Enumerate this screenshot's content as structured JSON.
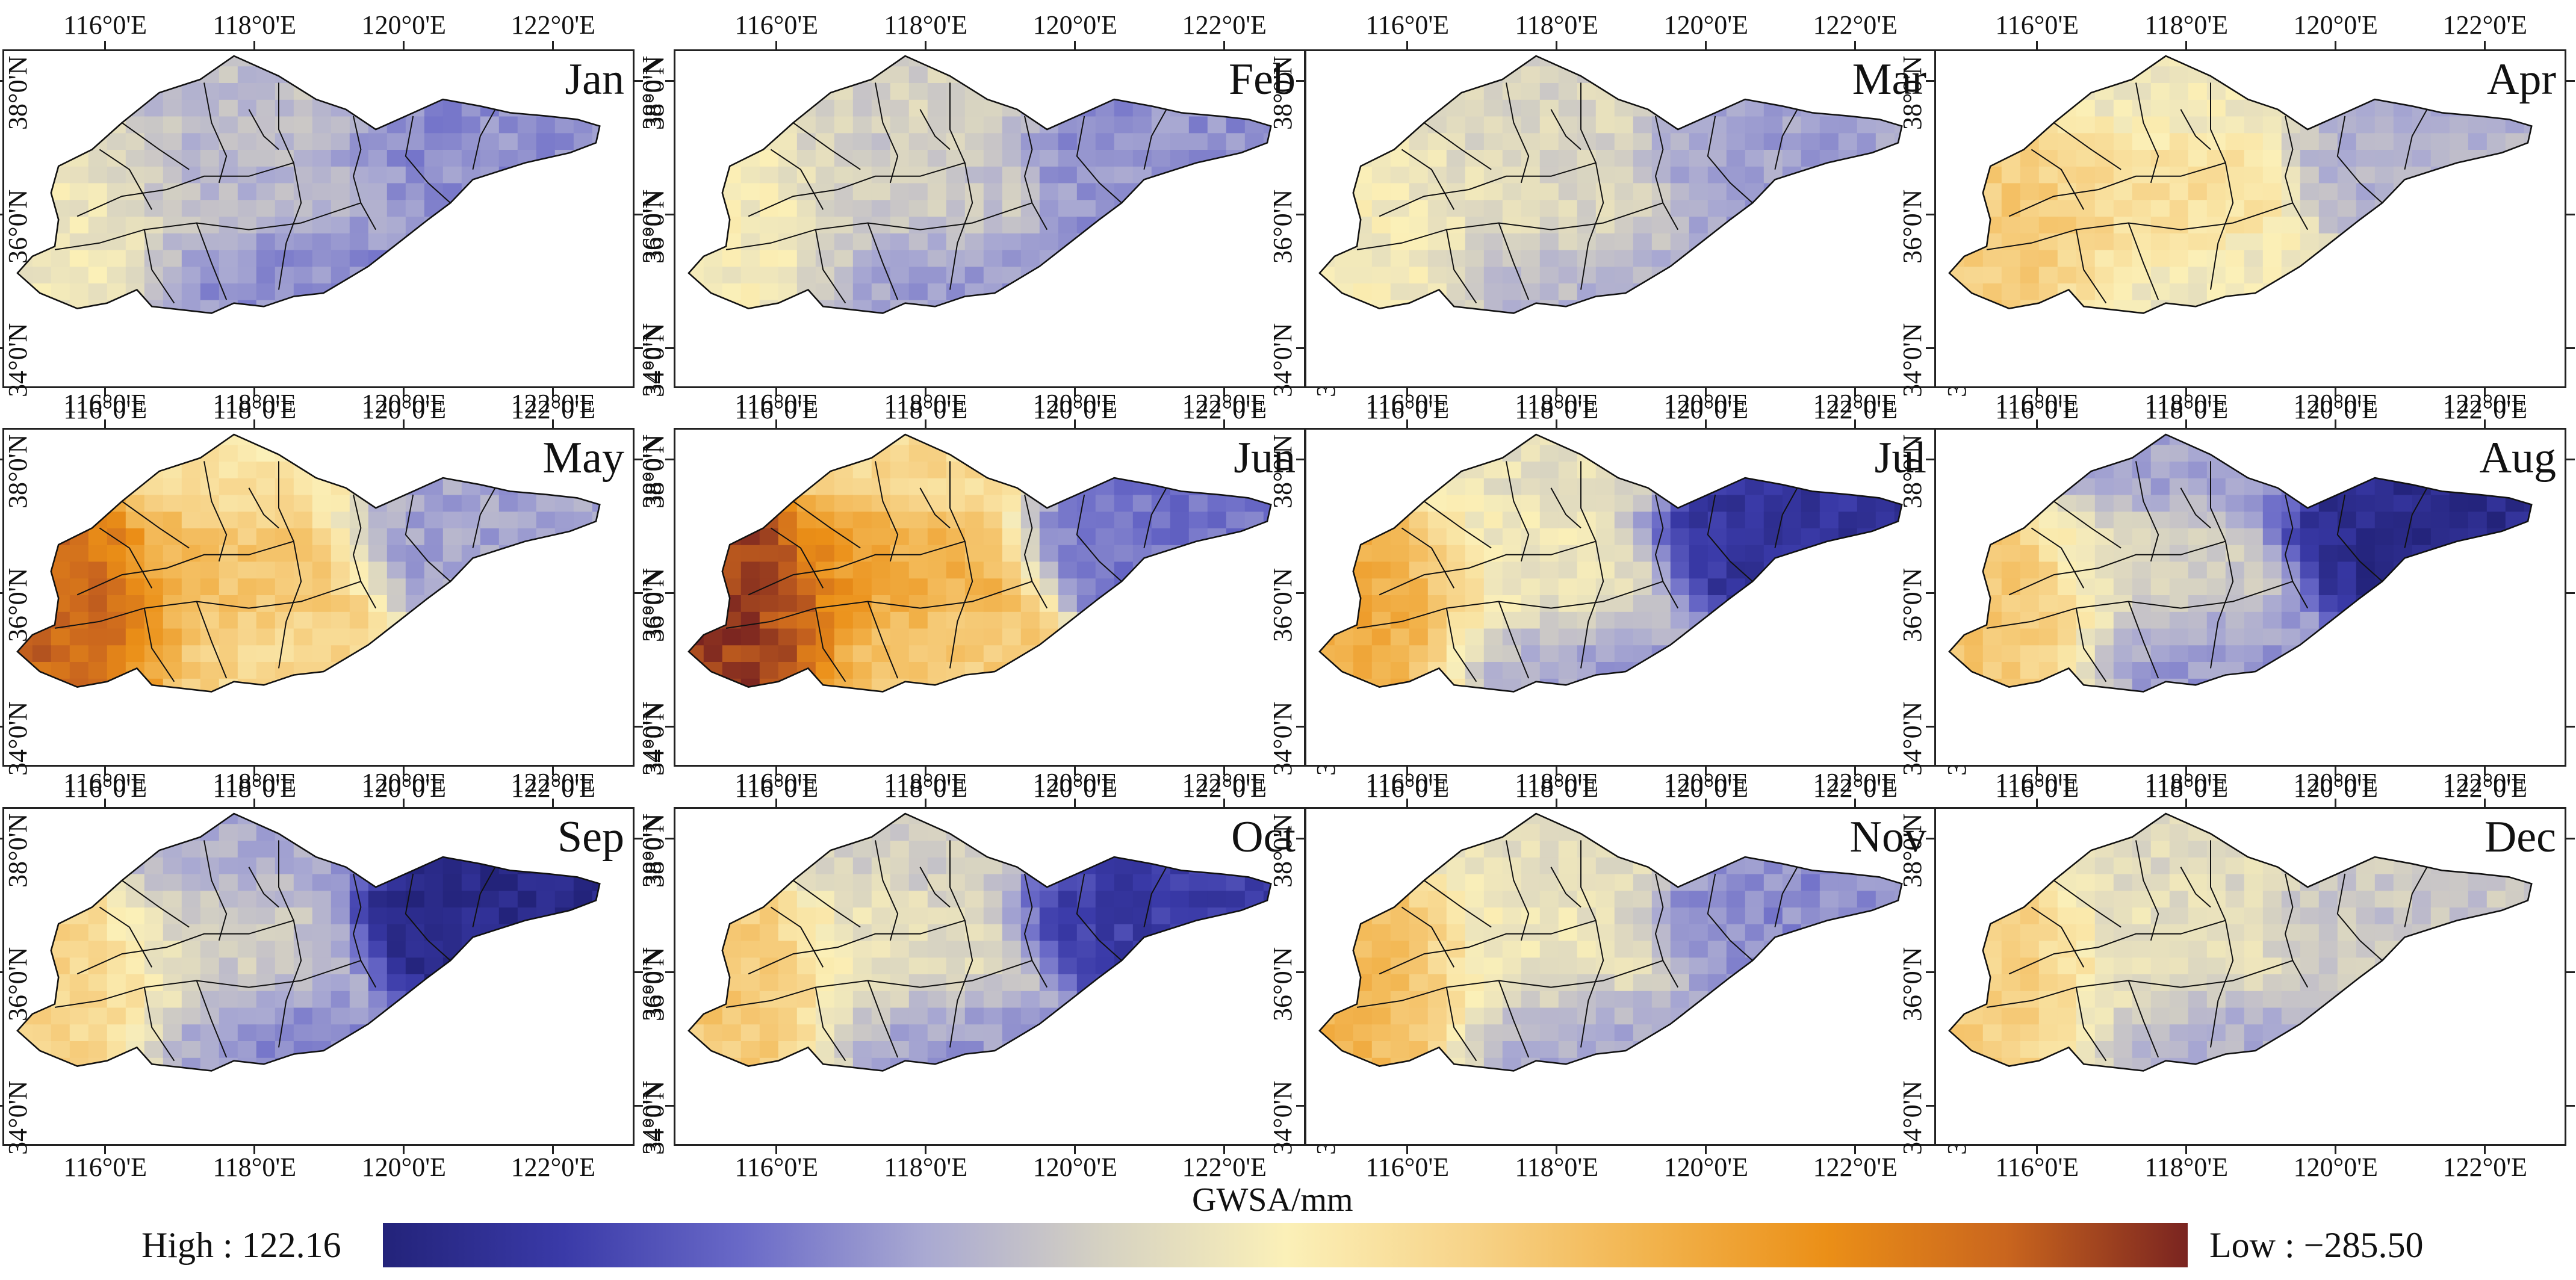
{
  "figure": {
    "variable_label": "GWSA/mm",
    "months": [
      "Jan",
      "Feb",
      "Mar",
      "Apr",
      "May",
      "Jun",
      "Jul",
      "Aug",
      "Sep",
      "Oct",
      "Nov",
      "Dec"
    ],
    "longitude_ticks": [
      "116°0'E",
      "118°0'E",
      "120°0'E",
      "122°0'E"
    ],
    "latitude_ticks": [
      "38°0'N",
      "36°0'N",
      "34°0'N"
    ]
  },
  "legend": {
    "high_label": "High : 122.16",
    "low_label": "Low : −285.50",
    "colors": [
      "#23237a",
      "#3a3aa8",
      "#6a6ac8",
      "#a9a9d2",
      "#d6d2c2",
      "#fbf0b8",
      "#f7d48a",
      "#f2b44e",
      "#eb8f17",
      "#c9651e",
      "#7a2420"
    ]
  },
  "maps": [
    {
      "month": "Jan",
      "field": {
        "west": 0.62,
        "centre": -0.18,
        "east": -0.58,
        "south": -0.64,
        "north": -0.05
      }
    },
    {
      "month": "Feb",
      "field": {
        "west": 0.68,
        "centre": 0.1,
        "east": -0.55,
        "south": -0.5,
        "north": 0.22
      }
    },
    {
      "month": "Mar",
      "field": {
        "west": 0.68,
        "centre": 0.32,
        "east": -0.42,
        "south": -0.2,
        "north": 0.25
      }
    },
    {
      "month": "Apr",
      "field": {
        "west": 1.45,
        "centre": 1.1,
        "east": -0.2,
        "south": 0.55,
        "north": 0.55
      }
    },
    {
      "month": "May",
      "field": {
        "west": 2.9,
        "centre": 1.55,
        "east": -0.38,
        "south": 1.2,
        "north": 0.95
      }
    },
    {
      "month": "Jun",
      "field": {
        "west": 3.3,
        "centre": 1.9,
        "east": -0.82,
        "south": 1.4,
        "north": 1.15
      }
    },
    {
      "month": "Jul",
      "field": {
        "west": 2.0,
        "centre": 0.55,
        "east": -1.6,
        "south": -0.45,
        "north": 0.45
      }
    },
    {
      "month": "Aug",
      "field": {
        "west": 1.5,
        "centre": 0.15,
        "east": -1.8,
        "south": -0.55,
        "north": -0.4
      }
    },
    {
      "month": "Sep",
      "field": {
        "west": 1.3,
        "centre": 0.1,
        "east": -1.85,
        "south": -0.65,
        "north": -0.3
      }
    },
    {
      "month": "Oct",
      "field": {
        "west": 1.5,
        "centre": 0.4,
        "east": -1.45,
        "south": -0.5,
        "north": 0.15
      }
    },
    {
      "month": "Nov",
      "field": {
        "west": 1.8,
        "centre": 0.5,
        "east": -0.6,
        "south": -0.4,
        "north": 0.45
      }
    },
    {
      "month": "Dec",
      "field": {
        "west": 1.4,
        "centre": 0.4,
        "east": 0.05,
        "south": -0.3,
        "north": 0.35
      }
    }
  ]
}
